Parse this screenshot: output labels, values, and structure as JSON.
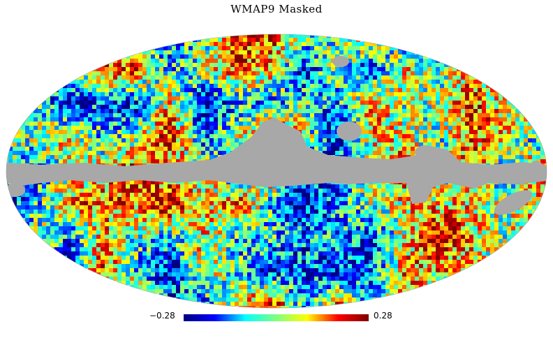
{
  "figure": {
    "title": "WMAP9 Masked"
  },
  "colorbar": {
    "min_label": "−0.28",
    "max_label": "0.28",
    "colormap": "jet",
    "stops": [
      "#00007f",
      "#0000ff",
      "#00ffff",
      "#7fff7f",
      "#ffff00",
      "#ff0000",
      "#7f0000"
    ]
  },
  "map": {
    "projection": "mollweide",
    "mask_color": "#a8a8a8",
    "background": "#ffffff"
  }
}
